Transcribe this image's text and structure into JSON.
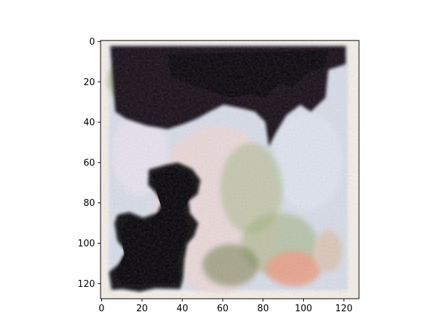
{
  "chart_data": {
    "type": "heatmap",
    "title": "",
    "xlabel": "",
    "ylabel": "",
    "xlim": [
      -0.5,
      127.5
    ],
    "ylim": [
      127.5,
      -0.5
    ],
    "y_inverted": true,
    "x_ticks": [
      0,
      20,
      40,
      60,
      80,
      100,
      120
    ],
    "y_ticks": [
      0,
      20,
      40,
      60,
      80,
      100,
      120
    ],
    "x_tick_labels": [
      "0",
      "20",
      "40",
      "60",
      "80",
      "100",
      "120"
    ],
    "y_tick_labels": [
      "0",
      "20",
      "40",
      "60",
      "80",
      "100",
      "120"
    ],
    "grid": false,
    "image_size": [
      128,
      128
    ],
    "description_colors": {
      "border": "#f3ede6",
      "sky": "#d4dcea",
      "dark": "#0e0a14",
      "olive": "#6f7d4e",
      "blush": "#eed6d4",
      "peach": "#e9a088",
      "green": "#93a86c"
    }
  }
}
